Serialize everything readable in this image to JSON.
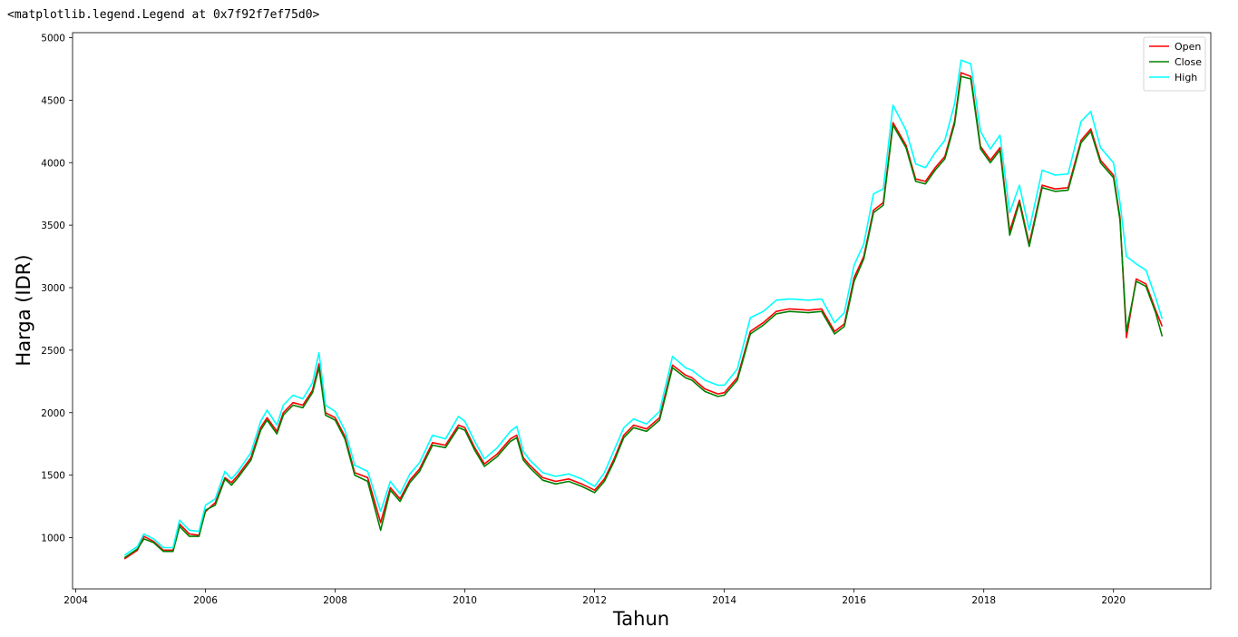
{
  "output_text": "<matplotlib.legend.Legend at 0x7f92f7ef75d0>",
  "chart_data": {
    "type": "line",
    "title": "",
    "xlabel": "Tahun",
    "ylabel": "Harga (IDR)",
    "xlim": [
      2003.95,
      2021.5
    ],
    "ylim": [
      590,
      5040
    ],
    "x_ticks": [
      2004,
      2006,
      2008,
      2010,
      2012,
      2014,
      2016,
      2018,
      2020
    ],
    "x_tick_labels": [
      "2004",
      "2006",
      "2008",
      "2010",
      "2012",
      "2014",
      "2016",
      "2018",
      "2020"
    ],
    "y_ticks": [
      1000,
      1500,
      2000,
      2500,
      3000,
      3500,
      4000,
      4500,
      5000
    ],
    "y_tick_labels": [
      "1000",
      "1500",
      "2000",
      "2500",
      "3000",
      "3500",
      "4000",
      "4500",
      "5000"
    ],
    "grid": false,
    "legend_position": "top-right",
    "x": [
      2004.75,
      2004.95,
      2005.05,
      2005.2,
      2005.35,
      2005.5,
      2005.6,
      2005.75,
      2005.9,
      2006.0,
      2006.15,
      2006.3,
      2006.4,
      2006.5,
      2006.7,
      2006.85,
      2006.95,
      2007.1,
      2007.2,
      2007.35,
      2007.5,
      2007.65,
      2007.75,
      2007.85,
      2008.0,
      2008.15,
      2008.3,
      2008.5,
      2008.7,
      2008.85,
      2009.0,
      2009.15,
      2009.3,
      2009.5,
      2009.7,
      2009.9,
      2010.0,
      2010.15,
      2010.3,
      2010.5,
      2010.7,
      2010.8,
      2010.9,
      2011.0,
      2011.2,
      2011.4,
      2011.6,
      2011.8,
      2012.0,
      2012.15,
      2012.3,
      2012.45,
      2012.6,
      2012.8,
      2013.0,
      2013.2,
      2013.4,
      2013.5,
      2013.7,
      2013.9,
      2014.0,
      2014.2,
      2014.4,
      2014.6,
      2014.8,
      2015.0,
      2015.3,
      2015.5,
      2015.7,
      2015.85,
      2016.0,
      2016.15,
      2016.3,
      2016.45,
      2016.6,
      2016.8,
      2016.95,
      2017.1,
      2017.25,
      2017.4,
      2017.55,
      2017.65,
      2017.8,
      2017.95,
      2018.1,
      2018.25,
      2018.4,
      2018.55,
      2018.7,
      2018.9,
      2019.1,
      2019.3,
      2019.5,
      2019.65,
      2019.8,
      2020.0,
      2020.1,
      2020.2,
      2020.35,
      2020.5,
      2020.65,
      2020.75
    ],
    "series": [
      {
        "name": "Open",
        "color": "#ff0000",
        "values": [
          830,
          900,
          1010,
          970,
          900,
          900,
          1110,
          1030,
          1020,
          1210,
          1280,
          1480,
          1440,
          1500,
          1640,
          1880,
          1960,
          1850,
          2000,
          2080,
          2060,
          2180,
          2390,
          2000,
          1960,
          1810,
          1520,
          1480,
          1120,
          1400,
          1310,
          1460,
          1550,
          1760,
          1740,
          1900,
          1880,
          1720,
          1590,
          1670,
          1790,
          1820,
          1640,
          1580,
          1480,
          1450,
          1470,
          1430,
          1380,
          1470,
          1630,
          1820,
          1900,
          1870,
          1960,
          2380,
          2300,
          2280,
          2190,
          2150,
          2160,
          2280,
          2650,
          2720,
          2810,
          2830,
          2820,
          2830,
          2650,
          2710,
          3080,
          3250,
          3620,
          3680,
          4320,
          4140,
          3870,
          3850,
          3960,
          4050,
          4330,
          4720,
          4690,
          4130,
          4020,
          4120,
          3450,
          3700,
          3350,
          3820,
          3790,
          3800,
          4180,
          4270,
          4020,
          3900,
          3560,
          2600,
          3070,
          3030,
          2820,
          2690
        ]
      },
      {
        "name": "Close",
        "color": "#008000",
        "values": [
          840,
          910,
          990,
          960,
          890,
          890,
          1090,
          1010,
          1010,
          1220,
          1260,
          1470,
          1420,
          1480,
          1620,
          1860,
          1940,
          1830,
          1980,
          2060,
          2040,
          2160,
          2360,
          1980,
          1940,
          1790,
          1500,
          1450,
          1060,
          1380,
          1290,
          1440,
          1530,
          1740,
          1720,
          1880,
          1860,
          1700,
          1570,
          1650,
          1770,
          1800,
          1620,
          1560,
          1460,
          1430,
          1450,
          1410,
          1360,
          1450,
          1610,
          1800,
          1880,
          1850,
          1940,
          2360,
          2280,
          2260,
          2170,
          2130,
          2140,
          2260,
          2630,
          2700,
          2790,
          2810,
          2800,
          2810,
          2630,
          2690,
          3050,
          3230,
          3600,
          3660,
          4300,
          4120,
          3850,
          3830,
          3940,
          4030,
          4310,
          4690,
          4670,
          4110,
          4000,
          4100,
          3420,
          3680,
          3330,
          3800,
          3770,
          3780,
          4160,
          4250,
          4000,
          3880,
          3540,
          2650,
          3050,
          3010,
          2800,
          2610
        ]
      },
      {
        "name": "High",
        "color": "#00ffff",
        "values": [
          860,
          930,
          1030,
          990,
          920,
          920,
          1140,
          1060,
          1050,
          1260,
          1310,
          1530,
          1470,
          1530,
          1680,
          1930,
          2020,
          1900,
          2060,
          2140,
          2110,
          2240,
          2480,
          2060,
          2010,
          1860,
          1580,
          1530,
          1210,
          1450,
          1350,
          1510,
          1600,
          1820,
          1790,
          1970,
          1930,
          1770,
          1630,
          1720,
          1850,
          1890,
          1690,
          1620,
          1520,
          1490,
          1510,
          1470,
          1410,
          1520,
          1700,
          1880,
          1950,
          1910,
          2010,
          2450,
          2360,
          2340,
          2260,
          2220,
          2220,
          2350,
          2760,
          2810,
          2900,
          2910,
          2900,
          2910,
          2720,
          2800,
          3180,
          3350,
          3750,
          3790,
          4460,
          4260,
          3990,
          3960,
          4080,
          4180,
          4470,
          4820,
          4790,
          4250,
          4110,
          4220,
          3600,
          3820,
          3460,
          3940,
          3900,
          3910,
          4330,
          4410,
          4120,
          4000,
          3680,
          3250,
          3190,
          3140,
          2920,
          2750
        ]
      }
    ]
  }
}
